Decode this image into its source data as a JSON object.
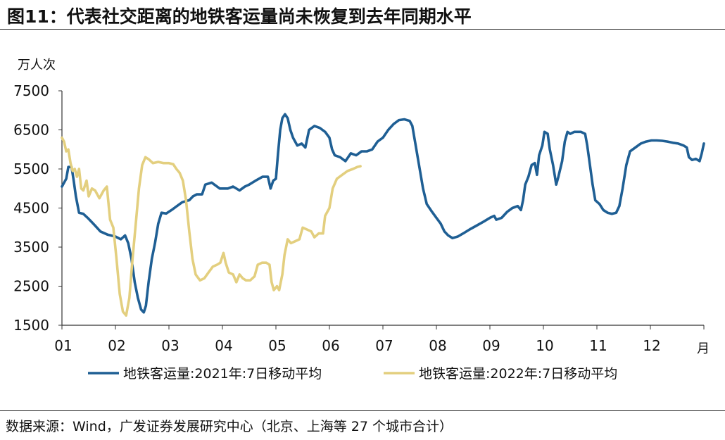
{
  "title": "图11：代表社交距离的地铁客运量尚未恢复到去年同期水平",
  "source": "数据来源：Wind，广发证券发展研究中心（北京、上海等 27 个城市合计）",
  "chart_data": {
    "type": "line",
    "ylabel": "万人次",
    "xlabel": "月",
    "ylim": [
      1500,
      7500
    ],
    "yticks": [
      1500,
      2500,
      3500,
      4500,
      5500,
      6500,
      7500
    ],
    "xticks": [
      "01",
      "02",
      "03",
      "04",
      "05",
      "06",
      "07",
      "08",
      "09",
      "10",
      "11",
      "12"
    ],
    "xlim": [
      0,
      12
    ],
    "grid": false,
    "legend_position": "bottom",
    "series": [
      {
        "name": "地铁客运量:2021年:7日移动平均",
        "color": "#1f5f94",
        "points": [
          [
            0.0,
            5050
          ],
          [
            0.08,
            5250
          ],
          [
            0.12,
            5550
          ],
          [
            0.18,
            5550
          ],
          [
            0.22,
            5200
          ],
          [
            0.26,
            4800
          ],
          [
            0.32,
            4380
          ],
          [
            0.4,
            4350
          ],
          [
            0.48,
            4250
          ],
          [
            0.55,
            4150
          ],
          [
            0.62,
            4050
          ],
          [
            0.72,
            3900
          ],
          [
            0.85,
            3820
          ],
          [
            1.0,
            3770
          ],
          [
            1.1,
            3700
          ],
          [
            1.18,
            3800
          ],
          [
            1.24,
            3600
          ],
          [
            1.3,
            3200
          ],
          [
            1.36,
            2600
          ],
          [
            1.42,
            2200
          ],
          [
            1.48,
            1900
          ],
          [
            1.53,
            1830
          ],
          [
            1.57,
            2000
          ],
          [
            1.62,
            2600
          ],
          [
            1.68,
            3200
          ],
          [
            1.74,
            3600
          ],
          [
            1.8,
            4100
          ],
          [
            1.86,
            4380
          ],
          [
            1.95,
            4360
          ],
          [
            2.05,
            4450
          ],
          [
            2.15,
            4550
          ],
          [
            2.25,
            4650
          ],
          [
            2.38,
            4700
          ],
          [
            2.45,
            4800
          ],
          [
            2.52,
            4850
          ],
          [
            2.62,
            4850
          ],
          [
            2.68,
            5100
          ],
          [
            2.8,
            5150
          ],
          [
            2.95,
            5000
          ],
          [
            3.1,
            5000
          ],
          [
            3.2,
            5050
          ],
          [
            3.32,
            4950
          ],
          [
            3.42,
            5050
          ],
          [
            3.5,
            5100
          ],
          [
            3.62,
            5200
          ],
          [
            3.75,
            5300
          ],
          [
            3.85,
            5300
          ],
          [
            3.9,
            5000
          ],
          [
            3.95,
            5200
          ],
          [
            4.0,
            5250
          ],
          [
            4.04,
            5900
          ],
          [
            4.08,
            6500
          ],
          [
            4.12,
            6800
          ],
          [
            4.17,
            6900
          ],
          [
            4.22,
            6800
          ],
          [
            4.27,
            6500
          ],
          [
            4.32,
            6300
          ],
          [
            4.4,
            6100
          ],
          [
            4.48,
            6150
          ],
          [
            4.55,
            6050
          ],
          [
            4.62,
            6500
          ],
          [
            4.72,
            6600
          ],
          [
            4.82,
            6550
          ],
          [
            4.92,
            6450
          ],
          [
            5.0,
            6300
          ],
          [
            5.05,
            6000
          ],
          [
            5.1,
            5850
          ],
          [
            5.2,
            5800
          ],
          [
            5.3,
            5700
          ],
          [
            5.4,
            5900
          ],
          [
            5.5,
            5850
          ],
          [
            5.6,
            5950
          ],
          [
            5.7,
            5950
          ],
          [
            5.8,
            6000
          ],
          [
            5.9,
            6200
          ],
          [
            6.0,
            6300
          ],
          [
            6.1,
            6500
          ],
          [
            6.2,
            6650
          ],
          [
            6.3,
            6750
          ],
          [
            6.4,
            6770
          ],
          [
            6.5,
            6730
          ],
          [
            6.55,
            6600
          ],
          [
            6.6,
            6200
          ],
          [
            6.65,
            5800
          ],
          [
            6.7,
            5400
          ],
          [
            6.75,
            5000
          ],
          [
            6.82,
            4600
          ],
          [
            6.92,
            4400
          ],
          [
            7.0,
            4250
          ],
          [
            7.08,
            4100
          ],
          [
            7.15,
            3900
          ],
          [
            7.22,
            3800
          ],
          [
            7.3,
            3730
          ],
          [
            7.4,
            3770
          ],
          [
            7.5,
            3850
          ],
          [
            7.62,
            3950
          ],
          [
            7.75,
            4050
          ],
          [
            7.88,
            4150
          ],
          [
            8.0,
            4250
          ],
          [
            8.08,
            4300
          ],
          [
            8.12,
            4200
          ],
          [
            8.22,
            4250
          ],
          [
            8.32,
            4400
          ],
          [
            8.42,
            4500
          ],
          [
            8.52,
            4550
          ],
          [
            8.58,
            4450
          ],
          [
            8.62,
            4700
          ],
          [
            8.66,
            5100
          ],
          [
            8.72,
            5300
          ],
          [
            8.78,
            5600
          ],
          [
            8.84,
            5650
          ],
          [
            8.88,
            5350
          ],
          [
            8.92,
            5850
          ],
          [
            8.98,
            6100
          ],
          [
            9.02,
            6450
          ],
          [
            9.08,
            6400
          ],
          [
            9.12,
            6000
          ],
          [
            9.18,
            5600
          ],
          [
            9.24,
            5100
          ],
          [
            9.28,
            5300
          ],
          [
            9.35,
            5700
          ],
          [
            9.4,
            6200
          ],
          [
            9.45,
            6450
          ],
          [
            9.5,
            6400
          ],
          [
            9.58,
            6450
          ],
          [
            9.7,
            6450
          ],
          [
            9.78,
            6400
          ],
          [
            9.82,
            6100
          ],
          [
            9.87,
            5600
          ],
          [
            9.92,
            5100
          ],
          [
            9.97,
            4700
          ],
          [
            10.05,
            4600
          ],
          [
            10.12,
            4450
          ],
          [
            10.2,
            4380
          ],
          [
            10.28,
            4350
          ],
          [
            10.36,
            4380
          ],
          [
            10.42,
            4550
          ],
          [
            10.48,
            5000
          ],
          [
            10.55,
            5600
          ],
          [
            10.62,
            5950
          ],
          [
            10.72,
            6050
          ],
          [
            10.82,
            6150
          ],
          [
            10.92,
            6200
          ],
          [
            11.02,
            6230
          ],
          [
            11.12,
            6230
          ],
          [
            11.22,
            6220
          ],
          [
            11.32,
            6200
          ],
          [
            11.42,
            6170
          ],
          [
            11.52,
            6150
          ],
          [
            11.62,
            6100
          ],
          [
            11.68,
            6050
          ],
          [
            11.72,
            5800
          ],
          [
            11.78,
            5730
          ],
          [
            11.85,
            5760
          ],
          [
            11.92,
            5700
          ],
          [
            11.96,
            5900
          ],
          [
            12.0,
            6150
          ]
        ]
      },
      {
        "name": "地铁客运量:2022年:7日移动平均",
        "color": "#e3cf7f",
        "points": [
          [
            0.0,
            6300
          ],
          [
            0.04,
            6200
          ],
          [
            0.08,
            5950
          ],
          [
            0.12,
            6000
          ],
          [
            0.16,
            5650
          ],
          [
            0.2,
            5450
          ],
          [
            0.24,
            5500
          ],
          [
            0.28,
            5300
          ],
          [
            0.32,
            5500
          ],
          [
            0.36,
            5000
          ],
          [
            0.4,
            4950
          ],
          [
            0.46,
            5200
          ],
          [
            0.5,
            4800
          ],
          [
            0.56,
            5000
          ],
          [
            0.62,
            4950
          ],
          [
            0.7,
            4750
          ],
          [
            0.78,
            4950
          ],
          [
            0.84,
            5050
          ],
          [
            0.9,
            4200
          ],
          [
            0.96,
            4000
          ],
          [
            1.02,
            3200
          ],
          [
            1.08,
            2300
          ],
          [
            1.14,
            1850
          ],
          [
            1.2,
            1750
          ],
          [
            1.26,
            2200
          ],
          [
            1.32,
            3200
          ],
          [
            1.38,
            4100
          ],
          [
            1.44,
            5000
          ],
          [
            1.5,
            5600
          ],
          [
            1.56,
            5800
          ],
          [
            1.62,
            5750
          ],
          [
            1.7,
            5650
          ],
          [
            1.8,
            5680
          ],
          [
            1.9,
            5650
          ],
          [
            2.0,
            5650
          ],
          [
            2.08,
            5620
          ],
          [
            2.14,
            5500
          ],
          [
            2.2,
            5400
          ],
          [
            2.26,
            5200
          ],
          [
            2.32,
            4700
          ],
          [
            2.38,
            3900
          ],
          [
            2.44,
            3200
          ],
          [
            2.5,
            2800
          ],
          [
            2.58,
            2650
          ],
          [
            2.66,
            2700
          ],
          [
            2.74,
            2850
          ],
          [
            2.82,
            3000
          ],
          [
            2.9,
            3050
          ],
          [
            2.96,
            3100
          ],
          [
            3.02,
            3350
          ],
          [
            3.06,
            3100
          ],
          [
            3.12,
            2850
          ],
          [
            3.2,
            2800
          ],
          [
            3.26,
            2600
          ],
          [
            3.32,
            2800
          ],
          [
            3.38,
            2700
          ],
          [
            3.44,
            2650
          ],
          [
            3.52,
            2650
          ],
          [
            3.6,
            2750
          ],
          [
            3.66,
            3050
          ],
          [
            3.74,
            3100
          ],
          [
            3.82,
            3100
          ],
          [
            3.88,
            3050
          ],
          [
            3.92,
            2600
          ],
          [
            3.96,
            2400
          ],
          [
            4.02,
            2500
          ],
          [
            4.06,
            2400
          ],
          [
            4.12,
            2800
          ],
          [
            4.16,
            3300
          ],
          [
            4.22,
            3700
          ],
          [
            4.28,
            3600
          ],
          [
            4.36,
            3650
          ],
          [
            4.44,
            3700
          ],
          [
            4.5,
            4000
          ],
          [
            4.58,
            3950
          ],
          [
            4.66,
            3900
          ],
          [
            4.72,
            3750
          ],
          [
            4.8,
            3850
          ],
          [
            4.88,
            3850
          ],
          [
            4.92,
            4300
          ],
          [
            5.0,
            4500
          ],
          [
            5.06,
            5000
          ],
          [
            5.14,
            5250
          ],
          [
            5.24,
            5350
          ],
          [
            5.34,
            5450
          ],
          [
            5.44,
            5500
          ],
          [
            5.52,
            5550
          ],
          [
            5.58,
            5570
          ]
        ]
      }
    ]
  }
}
